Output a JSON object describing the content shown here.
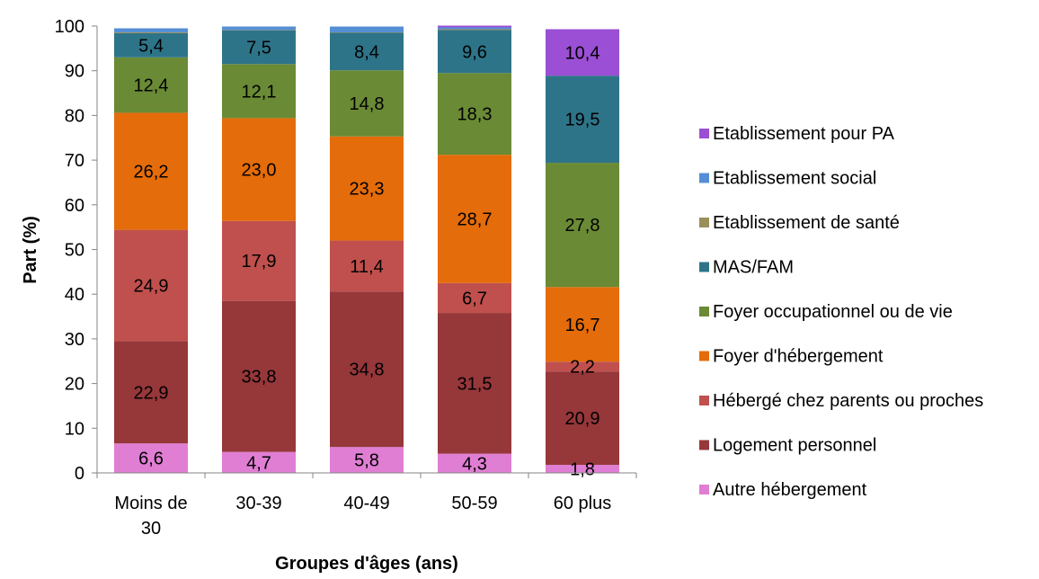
{
  "chart_data": {
    "type": "bar",
    "stacked": true,
    "title": "",
    "xlabel": "Groupes d'âges (ans)",
    "ylabel": "Part (%)",
    "ylim": [
      0,
      100
    ],
    "yticks": [
      "0",
      "10",
      "20",
      "30",
      "40",
      "50",
      "60",
      "70",
      "80",
      "90",
      "100"
    ],
    "categories": [
      [
        "Moins de",
        "30"
      ],
      [
        "30-39"
      ],
      [
        "40-49"
      ],
      [
        "50-59"
      ],
      [
        "60 plus"
      ]
    ],
    "legend_position": "right",
    "grid": false,
    "series": [
      {
        "name": "Autre hébergement",
        "color": "#E07ED4",
        "values": [
          6.6,
          4.7,
          5.8,
          4.3,
          1.8
        ],
        "labels": [
          "6,6",
          "4,7",
          "5,8",
          "4,3",
          "1,8"
        ]
      },
      {
        "name": "Logement personnel",
        "color": "#96373A",
        "values": [
          22.9,
          33.8,
          34.8,
          31.5,
          20.9
        ],
        "labels": [
          "22,9",
          "33,8",
          "34,8",
          "31,5",
          "20,9"
        ]
      },
      {
        "name": "Hébergé chez parents ou proches",
        "color": "#C0504D",
        "values": [
          24.9,
          17.9,
          11.4,
          6.7,
          2.2
        ],
        "labels": [
          "24,9",
          "17,9",
          "11,4",
          "6,7",
          "2,2"
        ]
      },
      {
        "name": "Foyer d'hébergement",
        "color": "#E46C0A",
        "values": [
          26.2,
          23.0,
          23.3,
          28.7,
          16.7
        ],
        "labels": [
          "26,2",
          "23,0",
          "23,3",
          "28,7",
          "16,7"
        ]
      },
      {
        "name": "Foyer occupationnel ou de vie",
        "color": "#6A8A35",
        "values": [
          12.4,
          12.1,
          14.8,
          18.3,
          27.8
        ],
        "labels": [
          "12,4",
          "12,1",
          "14,8",
          "18,3",
          "27,8"
        ]
      },
      {
        "name": "MAS/FAM",
        "color": "#2E7489",
        "values": [
          5.4,
          7.5,
          8.4,
          9.6,
          19.5
        ],
        "labels": [
          "5,4",
          "7,5",
          "8,4",
          "9,6",
          "19,5"
        ]
      },
      {
        "name": "Etablissement de santé",
        "color": "#9A8F5B",
        "values": [
          0.2,
          0.1,
          0.1,
          0.2,
          0.0
        ],
        "labels": [
          "",
          "",
          "",
          "",
          ""
        ]
      },
      {
        "name": "Etablissement social",
        "color": "#558ED5",
        "values": [
          0.9,
          0.8,
          1.3,
          0.4,
          0.0
        ],
        "labels": [
          "",
          "",
          "",
          "",
          ""
        ]
      },
      {
        "name": "Etablissement pour PA",
        "color": "#9A4FD5",
        "values": [
          0.0,
          0.0,
          0.0,
          0.4,
          10.4
        ],
        "labels": [
          "",
          "",
          "",
          "",
          "10,4"
        ]
      }
    ]
  }
}
